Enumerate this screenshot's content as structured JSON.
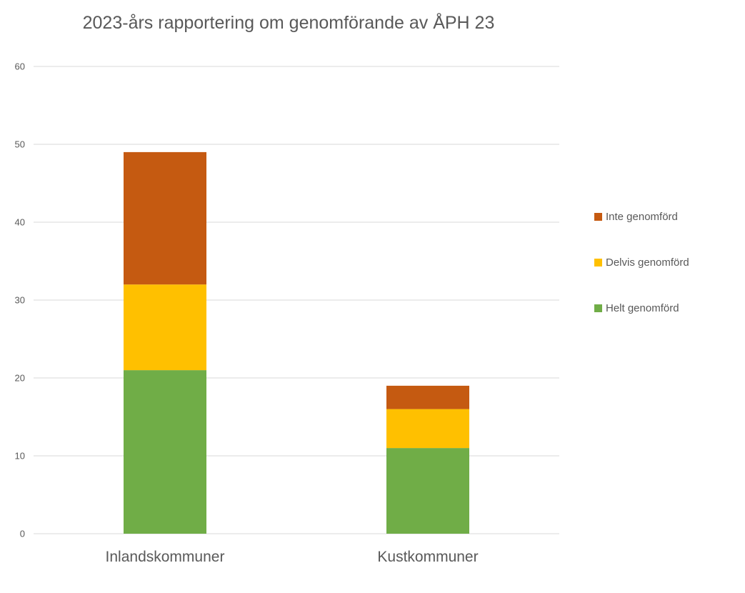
{
  "chart_data": {
    "type": "bar",
    "stacked": true,
    "title": "2023-års rapportering om genomförande av ÅPH 23",
    "categories": [
      "Inlandskommuner",
      "Kustkommuner"
    ],
    "series": [
      {
        "name": "Helt genomförd",
        "color": "#70AD47",
        "values": [
          21,
          11
        ]
      },
      {
        "name": "Delvis genomförd",
        "color": "#FFC000",
        "values": [
          11,
          5
        ]
      },
      {
        "name": "Inte genomförd",
        "color": "#C55A11",
        "values": [
          17,
          3
        ]
      }
    ],
    "ylim": [
      0,
      60
    ],
    "yticks": [
      0,
      10,
      20,
      30,
      40,
      50,
      60
    ],
    "grid": true,
    "legend": "right"
  }
}
